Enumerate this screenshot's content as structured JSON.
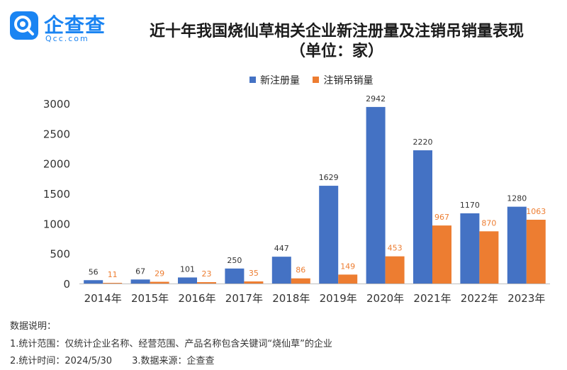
{
  "brand": {
    "name": "企查查",
    "domain": "Qcc.com",
    "color": "#1a84f2"
  },
  "header": {
    "title_line1": "近十年我国烧仙草相关企业新注册量及注销吊销量表现",
    "title_line2": "（单位：家）"
  },
  "chart_data": {
    "type": "bar",
    "title": "近十年我国烧仙草相关企业新注册量及注销吊销量表现（单位：家）",
    "categories": [
      "2014年",
      "2015年",
      "2016年",
      "2017年",
      "2018年",
      "2019年",
      "2020年",
      "2021年",
      "2022年",
      "2023年"
    ],
    "series": [
      {
        "name": "新注册量",
        "color": "#4472c4",
        "values": [
          56,
          67,
          101,
          250,
          447,
          1629,
          2942,
          2220,
          1170,
          1280
        ]
      },
      {
        "name": "注销吊销量",
        "color": "#ed7d31",
        "values": [
          11,
          29,
          23,
          35,
          86,
          149,
          453,
          967,
          870,
          1063
        ]
      }
    ],
    "xlabel": "",
    "ylabel": "",
    "ylim": [
      0,
      3000
    ],
    "yticks": [
      0,
      500,
      1000,
      1500,
      2000,
      2500,
      3000
    ],
    "legend_position": "top-center",
    "grid": false,
    "label_colors": {
      "新注册量": "#333333",
      "注销吊销量": "#ed7d31"
    }
  },
  "notes": {
    "heading": "数据说明：",
    "line1": "1.统计范围：仅统计企业名称、经营范围、产品名称包含关键词“烧仙草”的企业",
    "line2a": "2.统计时间：2024/5/30",
    "line2b": "3.数据来源：企查查"
  }
}
